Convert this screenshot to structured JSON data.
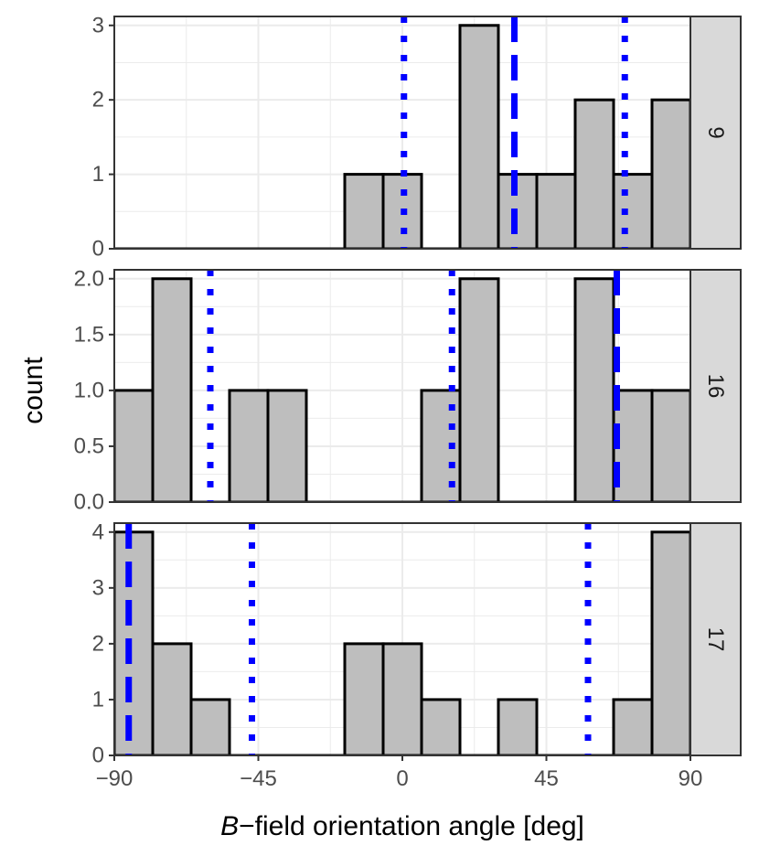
{
  "chart_data": {
    "type": "bar",
    "subtype": "faceted-histogram",
    "xlabel_italic": "B",
    "xlabel_rest": "−field orientation angle [deg]",
    "ylabel": "count",
    "xlim": [
      -90,
      90
    ],
    "x_ticks": [
      -90,
      -45,
      0,
      45,
      90
    ],
    "x_tick_labels": [
      "−90",
      "−45",
      "0",
      "45",
      "90"
    ],
    "bin_width": 12,
    "colors": {
      "bar_fill": "#bebebe",
      "bar_stroke": "#000000",
      "line": "#0000ff",
      "strip": "#d9d9d9",
      "grid": "#ebebeb",
      "panel_border": "#333333"
    },
    "panels": [
      {
        "strip": "9",
        "ylim": [
          0,
          3.12
        ],
        "y_ticks": [
          0,
          1,
          2,
          3
        ],
        "y_tick_labels": [
          "0",
          "1",
          "2",
          "3"
        ],
        "bin_starts": [
          -90,
          -78,
          -66,
          -54,
          -42,
          -30,
          -18,
          -6,
          6,
          18,
          30,
          42,
          54,
          66,
          78
        ],
        "counts": [
          0,
          0,
          0,
          0,
          0,
          0,
          1,
          1,
          0,
          3,
          1,
          1,
          2,
          1,
          2
        ],
        "dashed_lines": [
          35
        ],
        "dotted_lines": [
          0.5,
          69.5
        ]
      },
      {
        "strip": "16",
        "ylim": [
          0,
          2.08
        ],
        "y_ticks": [
          0,
          0.5,
          1,
          1.5,
          2
        ],
        "y_tick_labels": [
          "0.0",
          "0.5",
          "1.0",
          "1.5",
          "2.0"
        ],
        "bin_starts": [
          -90,
          -78,
          -66,
          -54,
          -42,
          -30,
          -18,
          -6,
          6,
          18,
          30,
          42,
          54,
          66,
          78
        ],
        "counts": [
          1,
          2,
          0,
          1,
          1,
          0,
          0,
          0,
          1,
          2,
          0,
          0,
          2,
          1,
          1
        ],
        "dashed_lines": [
          67
        ],
        "dotted_lines": [
          -60,
          15.5
        ]
      },
      {
        "strip": "17",
        "ylim": [
          0,
          4.16
        ],
        "y_ticks": [
          0,
          1,
          2,
          3,
          4
        ],
        "y_tick_labels": [
          "0",
          "1",
          "2",
          "3",
          "4"
        ],
        "bin_starts": [
          -90,
          -78,
          -66,
          -54,
          -42,
          -30,
          -18,
          -6,
          6,
          18,
          30,
          42,
          54,
          66,
          78
        ],
        "counts": [
          4,
          2,
          1,
          0,
          0,
          0,
          2,
          2,
          1,
          0,
          1,
          0,
          0,
          1,
          4
        ],
        "dashed_lines": [
          -85.5
        ],
        "dotted_lines": [
          -47,
          58
        ]
      }
    ]
  }
}
